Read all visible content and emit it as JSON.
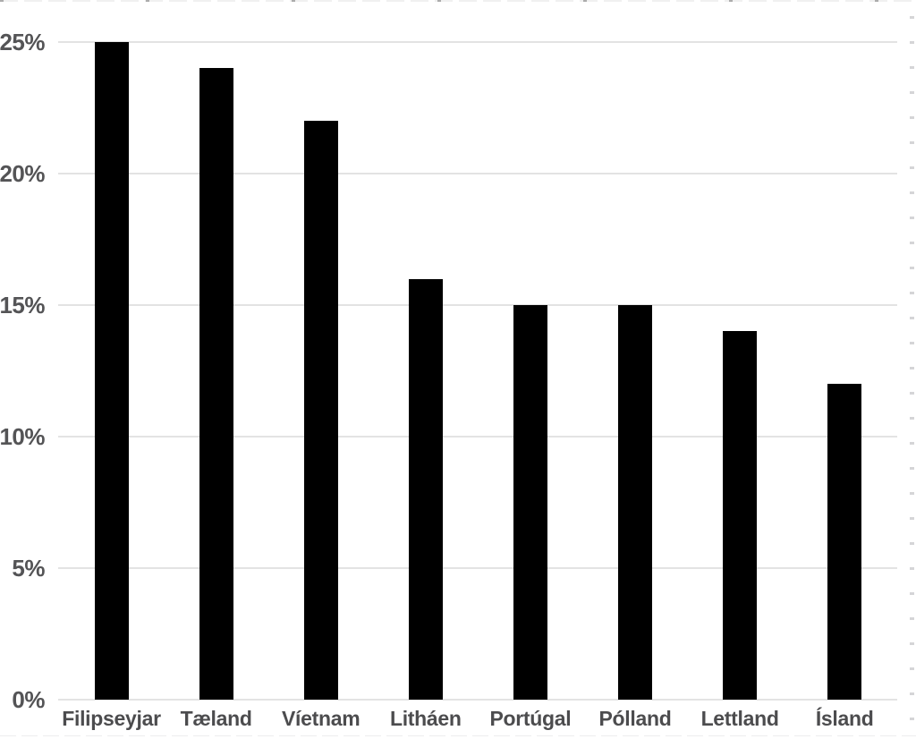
{
  "chart": {
    "background_color": "#ffffff",
    "bar_color": "#000000",
    "gridline_color": "#e3e3e3",
    "ytick_label_color": "#545456",
    "xtick_label_color": "#4c4c4e"
  },
  "chart_data": {
    "type": "bar",
    "categories": [
      "Filipseyjar",
      "Tæland",
      "Víetnam",
      "Litháen",
      "Portúgal",
      "Pólland",
      "Lettland",
      "Ísland"
    ],
    "values": [
      25,
      24,
      22,
      16,
      15,
      15,
      14,
      12
    ],
    "value_suffix": "%",
    "title": "",
    "xlabel": "",
    "ylabel": "",
    "ylim": [
      0,
      25
    ],
    "yticks": [
      0,
      5,
      10,
      15,
      20,
      25
    ],
    "ytick_labels": [
      "0%",
      "5%",
      "10%",
      "15%",
      "20%",
      "25%"
    ],
    "grid": "horizontal",
    "legend_position": "none"
  }
}
